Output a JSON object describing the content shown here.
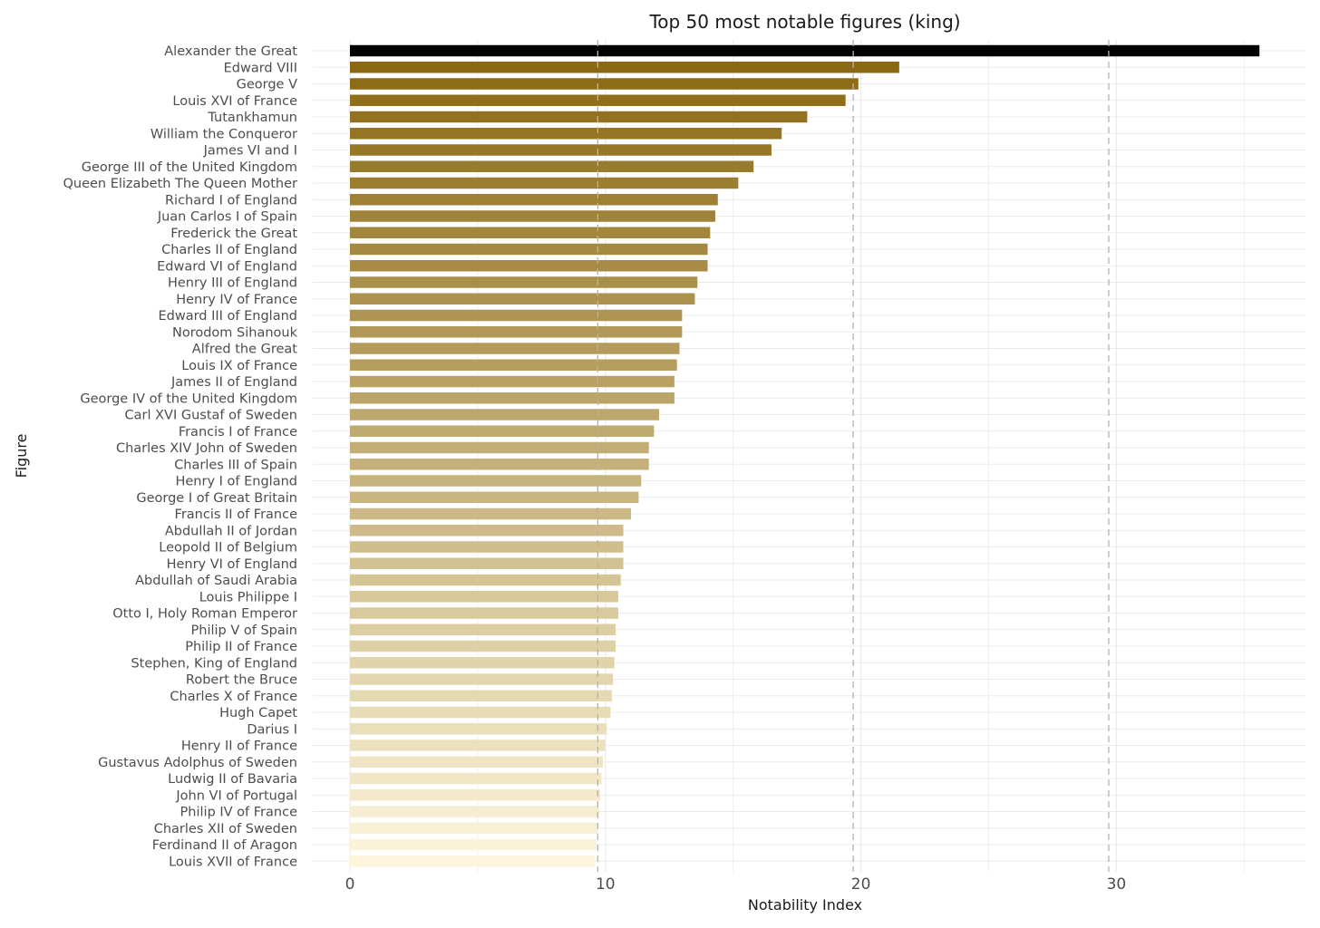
{
  "chart_data": {
    "type": "bar",
    "orientation": "horizontal",
    "title": "Top 50 most notable figures (king)",
    "xlabel": "Notability Index",
    "ylabel": "Figure",
    "xlim": [
      -1.5,
      37.5
    ],
    "xticks": [
      0,
      10,
      20,
      30
    ],
    "reference_lines": [
      9.7,
      19.7,
      29.7
    ],
    "grid": true,
    "legend": "none",
    "colors": {
      "top": "#000000",
      "dark": "#8b6914",
      "light": "#fdf6dc",
      "grid": "#ebebeb",
      "refline": "#b3b3b3"
    },
    "categories": [
      "Alexander the Great",
      "Edward VIII",
      "George V",
      "Louis XVI of France",
      "Tutankhamun",
      "William the Conqueror",
      "James VI and I",
      "George III of the United Kingdom",
      "Queen Elizabeth The Queen Mother",
      "Richard I of England",
      "Juan Carlos I of Spain",
      "Frederick the Great",
      "Charles II of England",
      "Edward VI of England",
      "Henry III of England",
      "Henry IV of France",
      "Edward III of England",
      "Norodom Sihanouk",
      "Alfred the Great",
      "Louis IX of France",
      "James II of England",
      "George IV of the United Kingdom",
      "Carl XVI Gustaf of Sweden",
      "Francis I of France",
      "Charles XIV John of Sweden",
      "Charles III of Spain",
      "Henry I of England",
      "George I of Great Britain",
      "Francis II of France",
      "Abdullah II of Jordan",
      "Leopold II of Belgium",
      "Henry VI of England",
      "Abdullah of Saudi Arabia",
      "Louis Philippe I",
      "Otto I, Holy Roman Emperor",
      "Philip V of Spain",
      "Philip II of France",
      "Stephen, King of England",
      "Robert the Bruce",
      "Charles X of France",
      "Hugh Capet",
      "Darius I",
      "Henry II of France",
      "Gustavus Adolphus of Sweden",
      "Ludwig II of Bavaria",
      "John VI of Portugal",
      "Philip IV of France",
      "Charles XII of Sweden",
      "Ferdinand II of Aragon",
      "Louis XVII of France"
    ],
    "values": [
      35.6,
      21.5,
      19.9,
      19.4,
      17.9,
      16.9,
      16.5,
      15.8,
      15.2,
      14.4,
      14.3,
      14.1,
      14.0,
      14.0,
      13.6,
      13.5,
      13.0,
      13.0,
      12.9,
      12.8,
      12.7,
      12.7,
      12.1,
      11.9,
      11.7,
      11.7,
      11.4,
      11.3,
      11.0,
      10.7,
      10.7,
      10.7,
      10.6,
      10.5,
      10.5,
      10.4,
      10.4,
      10.35,
      10.3,
      10.25,
      10.2,
      10.05,
      10.0,
      9.9,
      9.85,
      9.8,
      9.75,
      9.7,
      9.65,
      9.6
    ]
  }
}
